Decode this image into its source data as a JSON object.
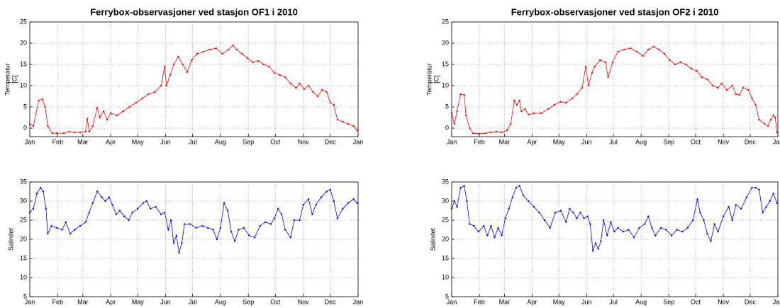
{
  "chart_data": [
    {
      "type": "line",
      "title": "Ferrybox-observasjoner ved stasjon OF1 i 2010",
      "ylabel": [
        "Temperatur",
        "[C]"
      ],
      "color": "#ff0000",
      "grid": true,
      "xlim": [
        0,
        365
      ],
      "xticks": [
        {
          "value": 0,
          "label": "Jan"
        },
        {
          "value": 31,
          "label": "Feb"
        },
        {
          "value": 59,
          "label": "Mar"
        },
        {
          "value": 90,
          "label": "Apr"
        },
        {
          "value": 120,
          "label": "May"
        },
        {
          "value": 151,
          "label": "Jun"
        },
        {
          "value": 181,
          "label": "Jul"
        },
        {
          "value": 212,
          "label": "Aug"
        },
        {
          "value": 243,
          "label": "Sep"
        },
        {
          "value": 273,
          "label": "Oct"
        },
        {
          "value": 304,
          "label": "Nov"
        },
        {
          "value": 334,
          "label": "Dec"
        },
        {
          "value": 365,
          "label": "Jan"
        }
      ],
      "ylim": [
        -2,
        25
      ],
      "yticks": [
        0,
        5,
        10,
        15,
        20,
        25
      ],
      "x": [
        0,
        4,
        10,
        14,
        17,
        20,
        25,
        30,
        38,
        44,
        50,
        56,
        62,
        64,
        66,
        70,
        75,
        78,
        82,
        86,
        90,
        97,
        104,
        111,
        118,
        125,
        132,
        139,
        146,
        150,
        152,
        156,
        160,
        165,
        170,
        175,
        180,
        186,
        193,
        200,
        207,
        214,
        221,
        226,
        230,
        236,
        242,
        248,
        254,
        260,
        266,
        272,
        278,
        284,
        290,
        296,
        300,
        305,
        310,
        315,
        320,
        325,
        330,
        334,
        338,
        342,
        348,
        354,
        360,
        364
      ],
      "values": [
        1,
        0.5,
        6.5,
        6.8,
        5,
        0.5,
        -1.2,
        -1.2,
        -1.2,
        -0.8,
        -1,
        -1,
        -0.8,
        2.2,
        -0.8,
        0.5,
        4.8,
        2.5,
        4,
        2,
        3.5,
        3,
        4,
        5,
        6,
        7,
        8,
        8.5,
        10,
        14.5,
        10,
        12.5,
        15,
        16.8,
        15,
        13.2,
        16,
        17.5,
        18,
        18.5,
        18.8,
        17.5,
        18.5,
        19.5,
        18.5,
        17.5,
        16.5,
        15.5,
        15.8,
        15,
        14.5,
        13,
        12.5,
        12,
        10.5,
        9.5,
        10.5,
        9.2,
        10,
        8.5,
        7.5,
        9,
        8.5,
        6,
        5.5,
        2,
        1.5,
        1,
        0.5,
        -0.5
      ]
    },
    {
      "type": "line",
      "ylabel": [
        "Salinitet"
      ],
      "color": "#0000ff",
      "grid": true,
      "xlim": [
        0,
        365
      ],
      "xticks": [
        {
          "value": 0,
          "label": "Jan"
        },
        {
          "value": 31,
          "label": "Feb"
        },
        {
          "value": 59,
          "label": "Mar"
        },
        {
          "value": 90,
          "label": "Apr"
        },
        {
          "value": 120,
          "label": "May"
        },
        {
          "value": 151,
          "label": "Jun"
        },
        {
          "value": 181,
          "label": "Jul"
        },
        {
          "value": 212,
          "label": "Aug"
        },
        {
          "value": 243,
          "label": "Sep"
        },
        {
          "value": 273,
          "label": "Oct"
        },
        {
          "value": 304,
          "label": "Nov"
        },
        {
          "value": 334,
          "label": "Dec"
        },
        {
          "value": 365,
          "label": "Jan"
        }
      ],
      "ylim": [
        5,
        35
      ],
      "yticks": [
        5,
        10,
        15,
        20,
        25,
        30,
        35
      ],
      "x": [
        0,
        4,
        8,
        12,
        15,
        18,
        20,
        24,
        30,
        36,
        40,
        45,
        50,
        56,
        62,
        66,
        70,
        75,
        80,
        84,
        88,
        92,
        96,
        100,
        105,
        110,
        114,
        120,
        126,
        130,
        134,
        140,
        146,
        150,
        154,
        157,
        160,
        163,
        166,
        169,
        172,
        178,
        185,
        192,
        198,
        204,
        208,
        212,
        216,
        220,
        224,
        228,
        232,
        238,
        244,
        250,
        256,
        262,
        268,
        272,
        276,
        280,
        284,
        290,
        294,
        300,
        304,
        310,
        314,
        318,
        324,
        330,
        334,
        338,
        342,
        348,
        354,
        360,
        364
      ],
      "values": [
        27,
        28,
        32,
        33.5,
        32.5,
        28,
        21.5,
        23.5,
        23,
        22.5,
        24.5,
        21.5,
        22.5,
        23.5,
        24.5,
        27,
        29.5,
        32.5,
        31,
        30,
        31,
        29,
        26.5,
        27.5,
        26,
        25,
        27,
        28,
        29.5,
        30,
        28,
        28.5,
        26.5,
        27,
        22.5,
        25,
        19,
        21,
        16.5,
        19,
        24,
        24,
        23,
        23.5,
        23,
        22.5,
        20,
        23,
        29.5,
        27.5,
        22,
        19.5,
        22.5,
        23,
        21,
        20.5,
        23.5,
        24.5,
        24,
        25.5,
        28,
        26.5,
        22.5,
        20.5,
        25,
        25,
        29,
        30.5,
        26.5,
        29,
        31,
        32.5,
        33,
        30,
        25.5,
        28,
        29.5,
        30.5,
        29.5
      ]
    },
    {
      "type": "line",
      "title": "Ferrybox-observasjoner ved stasjon OF2 i 2010",
      "ylabel": [
        "Temperatur",
        "[C]"
      ],
      "color": "#ff0000",
      "grid": true,
      "xlim": [
        0,
        365
      ],
      "xticks": [
        {
          "value": 0,
          "label": "Jan"
        },
        {
          "value": 31,
          "label": "Feb"
        },
        {
          "value": 59,
          "label": "Mar"
        },
        {
          "value": 90,
          "label": "Apr"
        },
        {
          "value": 120,
          "label": "May"
        },
        {
          "value": 151,
          "label": "Jun"
        },
        {
          "value": 181,
          "label": "Jul"
        },
        {
          "value": 212,
          "label": "Aug"
        },
        {
          "value": 243,
          "label": "Sep"
        },
        {
          "value": 273,
          "label": "Oct"
        },
        {
          "value": 304,
          "label": "Nov"
        },
        {
          "value": 334,
          "label": "Dec"
        },
        {
          "value": 365,
          "label": "Jan"
        }
      ],
      "ylim": [
        -2,
        25
      ],
      "yticks": [
        0,
        5,
        10,
        15,
        20,
        25
      ],
      "x": [
        0,
        3,
        6,
        10,
        14,
        16,
        20,
        24,
        30,
        38,
        44,
        50,
        56,
        62,
        66,
        70,
        73,
        76,
        78,
        82,
        86,
        92,
        100,
        108,
        115,
        122,
        128,
        135,
        140,
        146,
        150,
        153,
        157,
        160,
        166,
        172,
        175,
        180,
        186,
        193,
        200,
        207,
        214,
        220,
        226,
        232,
        238,
        244,
        250,
        256,
        262,
        268,
        274,
        280,
        286,
        292,
        298,
        302,
        308,
        314,
        318,
        322,
        326,
        332,
        336,
        340,
        344,
        350,
        354,
        357,
        360,
        362,
        364
      ],
      "values": [
        3.5,
        1,
        4,
        8,
        7.8,
        3,
        0,
        -1.2,
        -1.3,
        -1.2,
        -1,
        -0.8,
        -1,
        -0.5,
        1,
        6.5,
        5.5,
        6.5,
        4,
        4.5,
        3.2,
        3.5,
        3.5,
        4.5,
        5.5,
        6.2,
        6,
        7,
        8,
        9.5,
        14.5,
        10,
        13,
        14.5,
        16,
        15.5,
        12,
        15.5,
        18,
        18.5,
        18.8,
        18,
        17,
        18.5,
        19.2,
        18.5,
        17.5,
        16,
        15,
        15.5,
        15,
        14,
        13.5,
        12,
        11.5,
        10,
        9.5,
        10.5,
        9,
        10,
        8,
        7.8,
        9.5,
        9,
        7,
        5.5,
        2,
        1,
        0.5,
        2,
        3,
        2.5,
        -1
      ]
    },
    {
      "type": "line",
      "ylabel": [
        "Salinitet"
      ],
      "color": "#0000ff",
      "grid": true,
      "xlim": [
        0,
        365
      ],
      "xticks": [
        {
          "value": 0,
          "label": "Jan"
        },
        {
          "value": 31,
          "label": "Feb"
        },
        {
          "value": 59,
          "label": "Mar"
        },
        {
          "value": 90,
          "label": "Apr"
        },
        {
          "value": 120,
          "label": "May"
        },
        {
          "value": 151,
          "label": "Jun"
        },
        {
          "value": 181,
          "label": "Jul"
        },
        {
          "value": 212,
          "label": "Aug"
        },
        {
          "value": 243,
          "label": "Sep"
        },
        {
          "value": 273,
          "label": "Oct"
        },
        {
          "value": 304,
          "label": "Nov"
        },
        {
          "value": 334,
          "label": "Dec"
        },
        {
          "value": 365,
          "label": "Jan"
        }
      ],
      "ylim": [
        5,
        35
      ],
      "yticks": [
        5,
        10,
        15,
        20,
        25,
        30,
        35
      ],
      "x": [
        0,
        3,
        6,
        10,
        14,
        17,
        20,
        25,
        30,
        36,
        40,
        44,
        48,
        52,
        56,
        60,
        64,
        68,
        72,
        76,
        80,
        86,
        92,
        98,
        104,
        110,
        116,
        122,
        128,
        132,
        136,
        140,
        144,
        148,
        152,
        155,
        158,
        161,
        164,
        167,
        170,
        174,
        178,
        182,
        186,
        192,
        198,
        204,
        210,
        216,
        220,
        224,
        228,
        234,
        240,
        246,
        252,
        258,
        264,
        270,
        275,
        278,
        282,
        286,
        290,
        294,
        298,
        304,
        310,
        314,
        318,
        324,
        330,
        336,
        340,
        344,
        348,
        352,
        356,
        360,
        364
      ],
      "values": [
        28,
        30,
        28.5,
        33.5,
        34,
        30,
        24,
        23.5,
        22,
        23.5,
        21,
        23.5,
        20.5,
        23,
        21,
        25.5,
        28,
        31,
        33.5,
        34,
        31.5,
        30,
        28.5,
        27,
        25,
        23,
        27,
        27.5,
        24.5,
        28,
        27,
        25.5,
        27,
        25.5,
        26,
        24,
        17,
        19,
        17.5,
        19.5,
        25,
        21,
        24.5,
        22,
        23,
        22,
        22.5,
        20.5,
        23,
        24,
        26,
        23,
        21,
        23,
        22.5,
        21,
        22.5,
        22,
        23,
        25,
        30.5,
        27,
        25,
        21.5,
        19.5,
        24,
        22,
        26,
        28.5,
        25,
        29,
        28,
        31,
        33.5,
        33.5,
        33,
        27,
        28.5,
        30,
        32,
        29.5
      ]
    }
  ]
}
